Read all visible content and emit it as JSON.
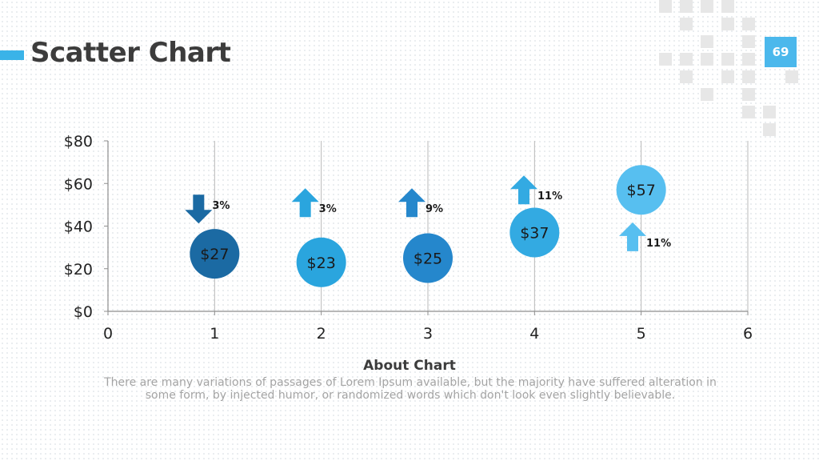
{
  "header": {
    "title": "Scatter Chart",
    "page_number": "69"
  },
  "footer": {
    "title": "About Chart",
    "text": "There are many variations of passages of Lorem Ipsum available, but the majority have suffered alteration in some form, by injected humor, or randomized words which don't look even slightly believable."
  },
  "colors": {
    "accent": "#3ab3e8",
    "deco": "#e7e7e7"
  },
  "chart_data": {
    "type": "scatter",
    "xlim": [
      0,
      6
    ],
    "ylim": [
      0,
      80
    ],
    "x_ticks": [
      "0",
      "1",
      "2",
      "3",
      "4",
      "5",
      "6"
    ],
    "y_ticks": [
      "$0",
      "$20",
      "$40",
      "$60",
      "$80"
    ],
    "grid": "vertical",
    "points": [
      {
        "x": 1,
        "y": 27,
        "label": "$27",
        "color": "#1b6aa3",
        "change": "3%",
        "direction": "down",
        "indicator_x": 0.85,
        "indicator_y": 48,
        "indicator_color": "#1b6aa3"
      },
      {
        "x": 2,
        "y": 23,
        "label": "$23",
        "color": "#2aa5de",
        "change": "3%",
        "direction": "up",
        "indicator_x": 1.85,
        "indicator_y": 51,
        "indicator_color": "#2aa5de"
      },
      {
        "x": 3,
        "y": 25,
        "label": "$25",
        "color": "#2587cc",
        "change": "9%",
        "direction": "up",
        "indicator_x": 2.85,
        "indicator_y": 51,
        "indicator_color": "#2587cc"
      },
      {
        "x": 4,
        "y": 37,
        "label": "$37",
        "color": "#33aae2",
        "change": "11%",
        "direction": "up",
        "indicator_x": 3.9,
        "indicator_y": 57,
        "indicator_color": "#33aae2"
      },
      {
        "x": 5,
        "y": 57,
        "label": "$57",
        "color": "#57bff0",
        "change": "11%",
        "direction": "up",
        "indicator_x": 4.92,
        "indicator_y": 35,
        "indicator_color": "#57bff0"
      }
    ]
  }
}
